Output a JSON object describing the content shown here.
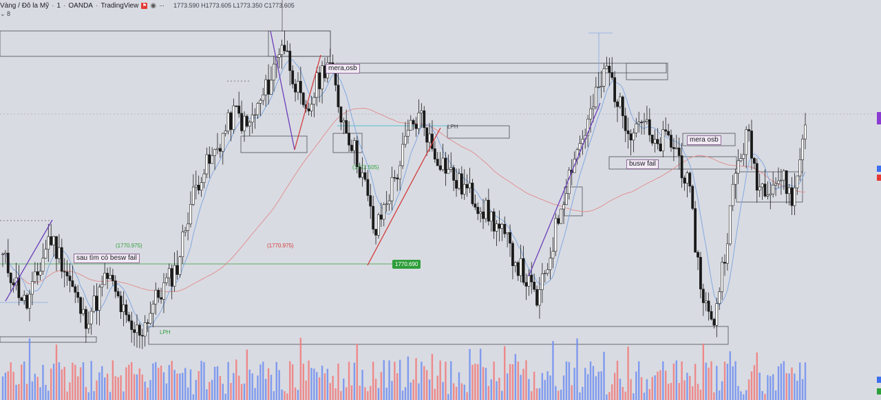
{
  "header": {
    "symbol": "Vàng / Đô la Mỹ",
    "interval": "1",
    "broker": "OANDA",
    "source": "TradingView",
    "flag_icon": "flag-icon",
    "visibility_icon": "eye-icon",
    "more": "···",
    "ohlc": "1773.590 H1773.605 L1773.350 C1773.605",
    "indicator_toggle": "⌄ 8"
  },
  "annotations": {
    "mera_osb_top": "mera,osb",
    "mera_osb_right": "mera osb",
    "busw_fail": "busw fail",
    "sau_tim": "sau tìm có besw fail",
    "lph_top": "LPH",
    "lph_bottom": "LPH",
    "level_green_left": "(1770.975)",
    "level_red_center": "(1770.975)",
    "level_green_mid": "(1772.505)",
    "low_price_label": "1770.690"
  },
  "colors": {
    "background": "#d9dbe2",
    "up_candle": "#ffffff",
    "down_candle": "#1a1a1a",
    "ma_fast": "#7fa8e0",
    "ma_slow": "#e08a8a",
    "vol_up": "#6f8ef0",
    "vol_down": "#f07a7a",
    "trend_line": "#6a3db8",
    "green_label": "#2e9e3a"
  },
  "chart_data": {
    "type": "candlestick",
    "title": "Vàng / Đô la Mỹ · 1 · OANDA",
    "price_points": [
      1772.2,
      1771.7,
      1771.1,
      1771.8,
      1772.7,
      1772.2,
      1771.5,
      1770.8,
      1771.2,
      1771.8,
      1771.2,
      1770.5,
      1770.6,
      1771.2,
      1771.6,
      1772.0,
      1773.3,
      1774.1,
      1774.4,
      1775.0,
      1775.5,
      1775.1,
      1775.6,
      1776.2,
      1777.1,
      1776.3,
      1775.3,
      1776.1,
      1776.7,
      1775.5,
      1774.8,
      1774.0,
      1772.7,
      1773.5,
      1774.2,
      1775.1,
      1775.4,
      1774.6,
      1774.3,
      1773.9,
      1773.7,
      1773.4,
      1773.1,
      1772.7,
      1772.2,
      1771.7,
      1771.2,
      1772.2,
      1773.4,
      1774.4,
      1775.0,
      1775.8,
      1776.5,
      1775.6,
      1775.1,
      1775.4,
      1774.6,
      1774.9,
      1774.6,
      1773.7,
      1771.6,
      1770.6,
      1772.2,
      1774.1,
      1775.0,
      1773.8,
      1773.9,
      1774.0,
      1773.5,
      1775.3
    ],
    "annotations": [
      "mera,osb",
      "mera osb",
      "busw fail",
      "sau tìm có besw fail",
      "LPH",
      "LPH",
      "(1770.975)",
      "(1770.975)",
      "(1772.505)",
      "1770.690"
    ]
  }
}
